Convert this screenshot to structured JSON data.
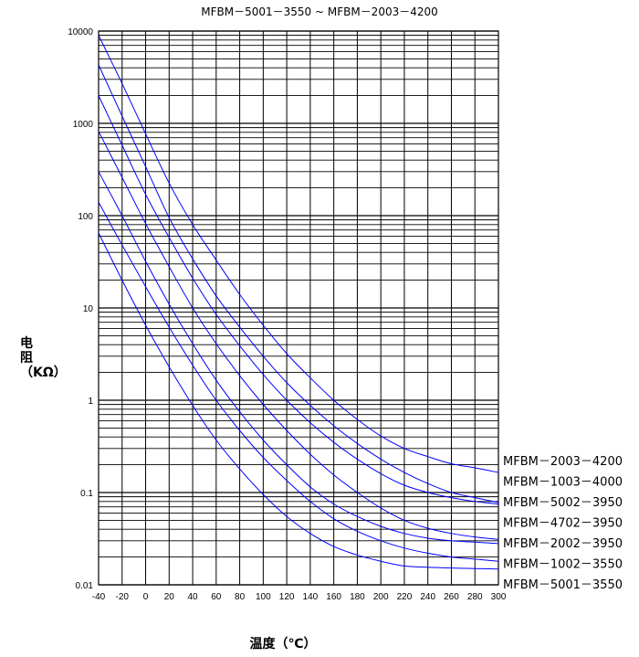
{
  "chart_data": {
    "type": "line",
    "title": "MFBM－5001－3550 ~ MFBM－2003－4200",
    "xlabel": "温度（℃）",
    "ylabel": "电阻（KΩ）",
    "xlim": [
      -40,
      300
    ],
    "ylim": [
      0.01,
      10000
    ],
    "yscale": "log",
    "grid": true,
    "legend_placement": "right",
    "line_color": "#0000ff",
    "x_ticks": [
      "-40",
      "-20",
      "0",
      "20",
      "40",
      "60",
      "80",
      "100",
      "120",
      "140",
      "160",
      "180",
      "200",
      "220",
      "240",
      "260",
      "280",
      "300"
    ],
    "y_ticks": [
      "0.01",
      "0.1",
      "1",
      "10",
      "100",
      "1000",
      "10000"
    ],
    "series": [
      {
        "name": "MFBM－2003－4200",
        "x": [
          -40,
          -20,
          0,
          20,
          40,
          60,
          80,
          100,
          120,
          140,
          160,
          180,
          200,
          220,
          240,
          260,
          280,
          300
        ],
        "values": [
          9000,
          2700,
          770,
          225,
          80,
          33,
          14,
          6.5,
          3.2,
          1.75,
          1.0,
          0.62,
          0.41,
          0.3,
          0.245,
          0.205,
          0.185,
          0.165
        ]
      },
      {
        "name": "MFBM－1003－4000",
        "x": [
          -40,
          -20,
          0,
          20,
          40,
          60,
          80,
          100,
          120,
          140,
          160,
          180,
          200,
          220,
          240,
          260,
          280,
          300
        ],
        "values": [
          4300,
          1200,
          340,
          95,
          34,
          13.5,
          6.2,
          3.0,
          1.55,
          0.88,
          0.53,
          0.34,
          0.23,
          0.165,
          0.125,
          0.1,
          0.088,
          0.078
        ]
      },
      {
        "name": "MFBM－5002－3950",
        "x": [
          -40,
          -20,
          0,
          20,
          40,
          60,
          80,
          100,
          120,
          140,
          160,
          180,
          200,
          220,
          240,
          260,
          280,
          300
        ],
        "values": [
          2000,
          580,
          170,
          58,
          21,
          8.5,
          3.9,
          1.9,
          1.0,
          0.57,
          0.35,
          0.23,
          0.16,
          0.12,
          0.1,
          0.088,
          0.08,
          0.075
        ]
      },
      {
        "name": "MFBM－4702－3950",
        "x": [
          -40,
          -20,
          0,
          20,
          40,
          60,
          80,
          100,
          120,
          140,
          160,
          180,
          200,
          220,
          240,
          260,
          280,
          300
        ],
        "values": [
          820,
          260,
          82,
          28,
          10,
          4.1,
          1.85,
          0.9,
          0.47,
          0.26,
          0.155,
          0.1,
          0.068,
          0.05,
          0.041,
          0.036,
          0.033,
          0.031
        ]
      },
      {
        "name": "MFBM－2002－3950",
        "x": [
          -40,
          -20,
          0,
          20,
          40,
          60,
          80,
          100,
          120,
          140,
          160,
          180,
          200,
          220,
          240,
          260,
          280,
          300
        ],
        "values": [
          300,
          100,
          32,
          11,
          4.1,
          1.65,
          0.75,
          0.37,
          0.2,
          0.115,
          0.075,
          0.055,
          0.043,
          0.036,
          0.032,
          0.03,
          0.029,
          0.028
        ]
      },
      {
        "name": "MFBM－1002－3550",
        "x": [
          -40,
          -20,
          0,
          20,
          40,
          60,
          80,
          100,
          120,
          140,
          160,
          180,
          200,
          220,
          240,
          260,
          280,
          300
        ],
        "values": [
          140,
          48,
          17,
          6.2,
          2.4,
          1.0,
          0.47,
          0.24,
          0.135,
          0.08,
          0.052,
          0.038,
          0.03,
          0.025,
          0.022,
          0.02,
          0.019,
          0.018
        ]
      },
      {
        "name": "MFBM－5001－3550",
        "x": [
          -40,
          -20,
          0,
          20,
          40,
          60,
          80,
          100,
          120,
          140,
          160,
          180,
          200,
          220,
          240,
          260,
          280,
          300
        ],
        "values": [
          65,
          20,
          6.5,
          2.3,
          0.88,
          0.37,
          0.18,
          0.095,
          0.055,
          0.036,
          0.026,
          0.021,
          0.018,
          0.016,
          0.0155,
          0.0152,
          0.015,
          0.0148
        ]
      }
    ],
    "legend_order": [
      "MFBM－2003－4200",
      "MFBM－1003－4000",
      "MFBM－5002－3950",
      "MFBM－4702－3950",
      "MFBM－2002－3950",
      "MFBM－1002－3550",
      "MFBM－5001－3550"
    ]
  }
}
